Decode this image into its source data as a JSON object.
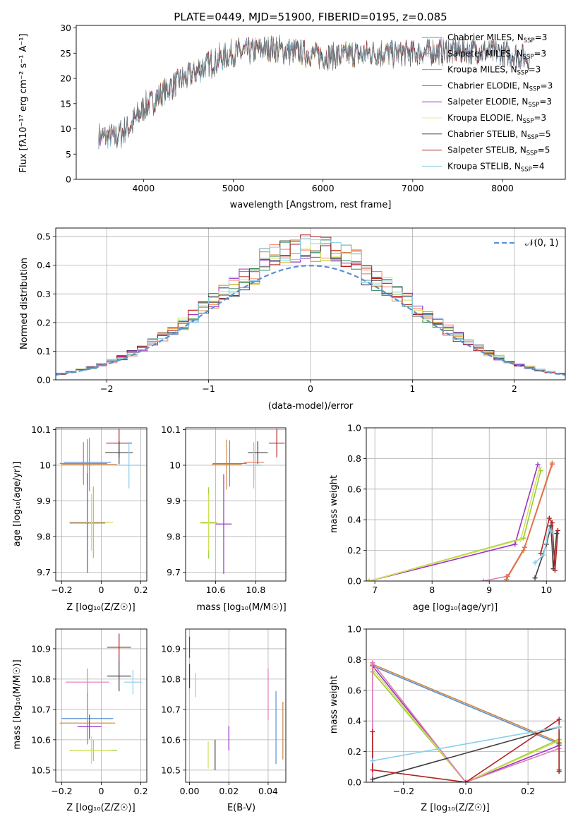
{
  "chart_data": [
    {
      "type": "line",
      "id": "spectrum",
      "title": "PLATE=0449, MJD=51900, FIBERID=0195, z=0.085",
      "xlabel": "wavelength [Angstrom, rest frame]",
      "ylabel": "Flux [fλ10⁻¹⁷ erg cm⁻² s⁻¹ A⁻¹]",
      "xlim": [
        3250,
        8700
      ],
      "ylim": [
        0,
        30.5
      ],
      "xticks": [
        4000,
        5000,
        6000,
        7000,
        8000
      ],
      "yticks": [
        0,
        5,
        10,
        15,
        20,
        25,
        30
      ],
      "grid": false,
      "legend_position": "top-right",
      "legend": [
        {
          "label": "Chabrier MILES, N",
          "sub": "SSP",
          "suffix": "=3",
          "color": "#5f9ea0"
        },
        {
          "label": "Salpeter MILES, N",
          "sub": "SSP",
          "suffix": "=3",
          "color": "#ff7f50"
        },
        {
          "label": "Kroupa MILES, N",
          "sub": "SSP",
          "suffix": "=3",
          "color": "#cd853f"
        },
        {
          "label": "Chabrier ELODIE, N",
          "sub": "SSP",
          "suffix": "=3",
          "color": "#2e8b57"
        },
        {
          "label": "Salpeter ELODIE, N",
          "sub": "SSP",
          "suffix": "=3",
          "color": "#9932cc"
        },
        {
          "label": "Kroupa ELODIE, N",
          "sub": "SSP",
          "suffix": "=3",
          "color": "#f0e68c"
        },
        {
          "label": "Chabrier STELIB, N",
          "sub": "SSP",
          "suffix": "=5",
          "color": "#404040"
        },
        {
          "label": "Salpeter STELIB, N",
          "sub": "SSP",
          "suffix": "=5",
          "color": "#b22222"
        },
        {
          "label": "Kroupa STELIB, N",
          "sub": "SSP",
          "suffix": "=4",
          "color": "#87ceeb"
        }
      ],
      "continuum": {
        "x": [
          3500,
          3700,
          3850,
          4000,
          4200,
          4400,
          4600,
          4800,
          5000,
          5200,
          5400,
          5600,
          5800,
          6000,
          6200,
          6500,
          7000,
          7400,
          7700,
          8000,
          8300
        ],
        "y": [
          8.5,
          8.5,
          10.5,
          14,
          17,
          19.5,
          21.5,
          23.5,
          25,
          25.5,
          26,
          25.5,
          25,
          24.5,
          24.5,
          25,
          25,
          25.5,
          25.5,
          25,
          24
        ]
      },
      "observed_data_color": "#707070"
    },
    {
      "type": "line",
      "id": "residual_histogram",
      "xlabel": "(data-model)/error",
      "ylabel": "Normed distribution",
      "xlim": [
        -2.5,
        2.5
      ],
      "ylim": [
        0,
        0.53
      ],
      "xticks": [
        -2,
        -1,
        0,
        1,
        2
      ],
      "yticks": [
        0.0,
        0.1,
        0.2,
        0.3,
        0.4,
        0.5
      ],
      "grid": true,
      "legend_position": "top-right",
      "reference_label": "𝒩(0, 1)",
      "reference_color": "#5b8fd4",
      "bins": 50,
      "series_colors": [
        "#5f9ea0",
        "#ff7f50",
        "#cd853f",
        "#2e8b57",
        "#9932cc",
        "#d4e157",
        "#404040",
        "#b22222",
        "#87ceeb"
      ]
    },
    {
      "type": "scatter",
      "id": "age_vs_Z",
      "xlabel": "Z [log₁₀(Z/Z☉)]",
      "ylabel": "age  [log₁₀(age/yr)]",
      "xlim": [
        -0.23,
        0.23
      ],
      "ylim": [
        9.675,
        10.105
      ],
      "xticks": [
        -0.2,
        0.0,
        0.2
      ],
      "yticks": [
        9.7,
        9.8,
        9.9,
        10.0,
        10.1
      ],
      "grid": true,
      "points": [
        {
          "x": 0.09,
          "y": 10.062,
          "xerr": 0.065,
          "yerr": 0.04,
          "color": "#b22222"
        },
        {
          "x": 0.09,
          "y": 10.035,
          "xerr": 0.07,
          "yerr": 0.032,
          "color": "#404040"
        },
        {
          "x": -0.07,
          "y": 10.008,
          "xerr": 0.12,
          "yerr": 0.065,
          "color": "#5b8fd4"
        },
        {
          "x": -0.06,
          "y": 10.002,
          "xerr": 0.14,
          "yerr": 0.075,
          "color": "#cd853f"
        },
        {
          "x": -0.09,
          "y": 10.005,
          "xerr": 0.12,
          "yerr": 0.06,
          "color": "#e76f51"
        },
        {
          "x": 0.14,
          "y": 10.0,
          "xerr": 0.06,
          "yerr": 0.065,
          "color": "#87ceeb"
        },
        {
          "x": -0.07,
          "y": 9.838,
          "xerr": 0.09,
          "yerr": 0.14,
          "color": "#9932cc"
        },
        {
          "x": -0.04,
          "y": 9.84,
          "xerr": 0.08,
          "yerr": 0.1,
          "color": "#9acd32"
        },
        {
          "x": -0.05,
          "y": 9.84,
          "xerr": 0.11,
          "yerr": 0.08,
          "color": "#d4e157"
        }
      ]
    },
    {
      "type": "scatter",
      "id": "age_vs_mass",
      "xlabel": "mass [log₁₀(M/M☉)]",
      "ylabel": "",
      "xlim": [
        10.45,
        10.95
      ],
      "ylim": [
        9.675,
        10.105
      ],
      "xticks": [
        10.6,
        10.8
      ],
      "yticks": [
        9.7,
        9.8,
        9.9,
        10.0,
        10.1
      ],
      "grid": true,
      "points": [
        {
          "x": 10.905,
          "y": 10.062,
          "xerr": 0.04,
          "yerr": 0.04,
          "color": "#b22222"
        },
        {
          "x": 10.81,
          "y": 10.035,
          "xerr": 0.05,
          "yerr": 0.032,
          "color": "#404040"
        },
        {
          "x": 10.67,
          "y": 10.005,
          "xerr": 0.085,
          "yerr": 0.065,
          "color": "#5b8fd4"
        },
        {
          "x": 10.655,
          "y": 10.002,
          "xerr": 0.075,
          "yerr": 0.07,
          "color": "#cd853f"
        },
        {
          "x": 10.79,
          "y": 10.008,
          "xerr": 0.05,
          "yerr": 0.05,
          "color": "#e76f51"
        },
        {
          "x": 10.79,
          "y": 10.0,
          "xerr": 0.04,
          "yerr": 0.065,
          "color": "#87ceeb"
        },
        {
          "x": 10.64,
          "y": 9.835,
          "xerr": 0.04,
          "yerr": 0.14,
          "color": "#9932cc"
        },
        {
          "x": 10.565,
          "y": 9.838,
          "xerr": 0.04,
          "yerr": 0.1,
          "color": "#9acd32"
        },
        {
          "x": 10.565,
          "y": 9.84,
          "xerr": 0.045,
          "yerr": 0.08,
          "color": "#d4e157"
        }
      ]
    },
    {
      "type": "line",
      "id": "weight_vs_age",
      "xlabel": "age  [log₁₀(age/yr)]",
      "ylabel": "mass weight",
      "xlim": [
        6.85,
        10.33
      ],
      "ylim": [
        0,
        1.0
      ],
      "xticks": [
        7,
        8,
        9,
        10
      ],
      "yticks": [
        0.0,
        0.2,
        0.4,
        0.6,
        0.8,
        1.0
      ],
      "grid": true,
      "series": [
        {
          "color": "#9932cc",
          "x": [
            6.9,
            9.45,
            9.85
          ],
          "y": [
            0.0,
            0.24,
            0.76
          ]
        },
        {
          "color": "#9acd32",
          "x": [
            6.9,
            9.6,
            9.9
          ],
          "y": [
            0.0,
            0.28,
            0.72
          ]
        },
        {
          "color": "#d4e157",
          "x": [
            6.9,
            9.55,
            9.88
          ],
          "y": [
            0.0,
            0.27,
            0.74
          ]
        },
        {
          "color": "#e07bb5",
          "x": [
            8.9,
            9.3
          ],
          "y": [
            0.0,
            0.03
          ]
        },
        {
          "color": "#cd853f",
          "x": [
            9.3,
            9.6,
            10.1
          ],
          "y": [
            0.01,
            0.2,
            0.77
          ]
        },
        {
          "color": "#e76f51",
          "x": [
            9.32,
            9.62,
            10.1
          ],
          "y": [
            0.03,
            0.22,
            0.76
          ]
        },
        {
          "color": "#404040",
          "x": [
            9.8,
            10.0,
            10.08,
            10.12,
            10.18
          ],
          "y": [
            0.02,
            0.24,
            0.36,
            0.08,
            0.31
          ]
        },
        {
          "color": "#b22222",
          "x": [
            9.9,
            10.05,
            10.1,
            10.15,
            10.2
          ],
          "y": [
            0.18,
            0.41,
            0.38,
            0.07,
            0.33
          ]
        },
        {
          "color": "#87ceeb",
          "x": [
            9.8,
            9.95,
            10.05,
            10.1
          ],
          "y": [
            0.12,
            0.17,
            0.34,
            0.32
          ]
        }
      ]
    },
    {
      "type": "scatter",
      "id": "mass_vs_Z",
      "xlabel": "Z [log₁₀(Z/Z☉)]",
      "ylabel": "mass [log₁₀(M/M☉)]",
      "xlim": [
        -0.23,
        0.23
      ],
      "ylim": [
        10.46,
        10.965
      ],
      "xticks": [
        -0.2,
        0.0,
        0.2
      ],
      "yticks": [
        10.5,
        10.6,
        10.7,
        10.8,
        10.9
      ],
      "grid": true,
      "points": [
        {
          "x": 0.09,
          "y": 10.905,
          "xerr": 0.06,
          "yerr": 0.045,
          "color": "#b22222"
        },
        {
          "x": 0.09,
          "y": 10.81,
          "xerr": 0.06,
          "yerr": 0.05,
          "color": "#404040"
        },
        {
          "x": -0.07,
          "y": 10.79,
          "xerr": 0.11,
          "yerr": 0.045,
          "color": "#e07bb5"
        },
        {
          "x": 0.16,
          "y": 10.79,
          "xerr": 0.045,
          "yerr": 0.04,
          "color": "#87ceeb"
        },
        {
          "x": -0.07,
          "y": 10.67,
          "xerr": 0.13,
          "yerr": 0.085,
          "color": "#5b8fd4"
        },
        {
          "x": -0.07,
          "y": 10.655,
          "xerr": 0.14,
          "yerr": 0.07,
          "color": "#cd853f"
        },
        {
          "x": -0.06,
          "y": 10.643,
          "xerr": 0.06,
          "yerr": 0.04,
          "color": "#9932cc"
        },
        {
          "x": -0.04,
          "y": 10.565,
          "xerr": 0.12,
          "yerr": 0.035,
          "color": "#9acd32"
        },
        {
          "x": -0.05,
          "y": 10.565,
          "xerr": 0.1,
          "yerr": 0.045,
          "color": "#d4e157"
        }
      ]
    },
    {
      "type": "scatter",
      "id": "mass_vs_EBV",
      "xlabel": "E(B-V)",
      "ylabel": "",
      "xlim": [
        -0.002,
        0.049
      ],
      "ylim": [
        10.46,
        10.965
      ],
      "xticks": [
        0.0,
        0.02,
        0.04
      ],
      "xtick_labels": [
        "0.00",
        "0.02",
        "0.04"
      ],
      "yticks": [
        10.5,
        10.6,
        10.7,
        10.8,
        10.9
      ],
      "grid": true,
      "points": [
        {
          "x": 0.0,
          "y": 10.905,
          "yerr": 0.035,
          "color": "#b22222"
        },
        {
          "x": 0.0,
          "y": 10.81,
          "yerr": 0.04,
          "color": "#404040"
        },
        {
          "x": 0.003,
          "y": 10.78,
          "yerr": 0.04,
          "color": "#87ceeb"
        },
        {
          "x": 0.0095,
          "y": 10.55,
          "yerr": 0.045,
          "color": "#d4e157"
        },
        {
          "x": 0.013,
          "y": 10.55,
          "yerr": 0.05,
          "color": "#404040"
        },
        {
          "x": 0.02,
          "y": 10.605,
          "yerr": 0.04,
          "color": "#9932cc"
        },
        {
          "x": 0.04,
          "y": 10.75,
          "yerr": 0.085,
          "color": "#e07bb5"
        },
        {
          "x": 0.044,
          "y": 10.64,
          "yerr": 0.12,
          "color": "#5b8fd4"
        },
        {
          "x": 0.0475,
          "y": 10.63,
          "yerr": 0.095,
          "color": "#cd853f"
        }
      ]
    },
    {
      "type": "line",
      "id": "weight_vs_Z",
      "xlabel": "Z [log₁₀(Z/Z☉)]",
      "ylabel": "mass weight",
      "xlim": [
        -0.32,
        0.32
      ],
      "ylim": [
        0,
        1.0
      ],
      "xticks": [
        -0.2,
        0.0,
        0.2
      ],
      "xtick_labels": [
        "−0.2",
        "0.0",
        "0.2"
      ],
      "yticks": [
        0.0,
        0.2,
        0.4,
        0.6,
        0.8,
        1.0
      ],
      "grid": true,
      "series": [
        {
          "color": "#5b8fd4",
          "x": [
            -0.3,
            0.3
          ],
          "y": [
            0.76,
            0.25
          ]
        },
        {
          "color": "#cd853f",
          "x": [
            -0.3,
            0.3
          ],
          "y": [
            0.77,
            0.26
          ]
        },
        {
          "color": "#9932cc",
          "x": [
            -0.3,
            0.0,
            0.3
          ],
          "y": [
            0.76,
            0.0,
            0.24
          ]
        },
        {
          "color": "#9acd32",
          "x": [
            -0.3,
            0.0,
            0.3
          ],
          "y": [
            0.72,
            0.0,
            0.28
          ]
        },
        {
          "color": "#d4e157",
          "x": [
            -0.3,
            0.0,
            0.3
          ],
          "y": [
            0.74,
            0.0,
            0.27
          ]
        },
        {
          "color": "#e07bb5",
          "x": [
            -0.3,
            -0.3,
            0.0,
            0.3
          ],
          "y": [
            0.0,
            0.78,
            0.0,
            0.22
          ]
        },
        {
          "color": "#404040",
          "x": [
            -0.3,
            0.3,
            0.3
          ],
          "y": [
            0.02,
            0.36,
            0.08
          ]
        },
        {
          "color": "#b22222",
          "x": [
            -0.3,
            -0.3,
            0.0,
            0.3,
            0.3
          ],
          "y": [
            0.33,
            0.08,
            0.0,
            0.41,
            0.07
          ]
        },
        {
          "color": "#87ceeb",
          "x": [
            -0.3,
            0.3
          ],
          "y": [
            0.14,
            0.36
          ]
        }
      ]
    }
  ]
}
